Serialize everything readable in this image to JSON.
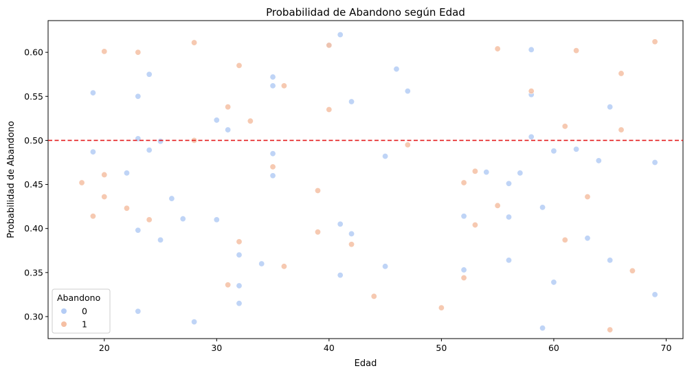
{
  "chart_data": {
    "type": "scatter",
    "title": "Probabilidad de Abandono según Edad",
    "xlabel": "Edad",
    "ylabel": "Probabilidad de Abandono",
    "xlim": [
      15,
      71.5
    ],
    "ylim": [
      0.275,
      0.636
    ],
    "xticks": [
      20,
      30,
      40,
      50,
      60,
      70
    ],
    "yticks": [
      0.3,
      0.35,
      0.4,
      0.45,
      0.5,
      0.55,
      0.6
    ],
    "xtick_labels": [
      "20",
      "30",
      "40",
      "50",
      "60",
      "70"
    ],
    "ytick_labels": [
      "0.30",
      "0.35",
      "0.40",
      "0.45",
      "0.50",
      "0.55",
      "0.60"
    ],
    "grid": false,
    "reference_line": {
      "y": 0.5,
      "color": "#e41a1c",
      "style": "dashed"
    },
    "legend": {
      "title": "Abandono",
      "position": "lower-left"
    },
    "colors": {
      "0": "#b4ccf5",
      "1": "#f5bfa3"
    },
    "series": [
      {
        "name": "0",
        "x": [
          19,
          19,
          23,
          23,
          23,
          23,
          24,
          24,
          25,
          25,
          22,
          26,
          27,
          28,
          30,
          30,
          31,
          32,
          32,
          32,
          34,
          35,
          35,
          35,
          35,
          40,
          41,
          41,
          41,
          42,
          42,
          45,
          45,
          46,
          47,
          52,
          52,
          54,
          56,
          56,
          56,
          57,
          58,
          58,
          58,
          59,
          59,
          60,
          60,
          62,
          63,
          64,
          65,
          65,
          69,
          69
        ],
        "y": [
          0.554,
          0.487,
          0.55,
          0.502,
          0.398,
          0.306,
          0.575,
          0.489,
          0.499,
          0.387,
          0.463,
          0.434,
          0.411,
          0.294,
          0.523,
          0.41,
          0.512,
          0.37,
          0.335,
          0.315,
          0.36,
          0.572,
          0.562,
          0.485,
          0.46,
          0.608,
          0.62,
          0.405,
          0.347,
          0.544,
          0.394,
          0.482,
          0.357,
          0.581,
          0.556,
          0.414,
          0.353,
          0.464,
          0.451,
          0.413,
          0.364,
          0.463,
          0.603,
          0.552,
          0.504,
          0.424,
          0.287,
          0.488,
          0.339,
          0.49,
          0.389,
          0.477,
          0.538,
          0.364,
          0.475,
          0.325
        ]
      },
      {
        "name": "1",
        "x": [
          18,
          19,
          20,
          20,
          20,
          22,
          23,
          24,
          28,
          28,
          31,
          31,
          32,
          32,
          33,
          35,
          36,
          36,
          39,
          39,
          40,
          40,
          42,
          44,
          47,
          50,
          52,
          52,
          53,
          53,
          55,
          55,
          58,
          61,
          61,
          62,
          63,
          65,
          66,
          66,
          67,
          69
        ],
        "y": [
          0.452,
          0.414,
          0.601,
          0.461,
          0.436,
          0.423,
          0.6,
          0.41,
          0.611,
          0.5,
          0.538,
          0.336,
          0.585,
          0.385,
          0.522,
          0.47,
          0.562,
          0.357,
          0.443,
          0.396,
          0.608,
          0.535,
          0.382,
          0.323,
          0.495,
          0.31,
          0.452,
          0.344,
          0.465,
          0.404,
          0.604,
          0.426,
          0.556,
          0.516,
          0.387,
          0.602,
          0.436,
          0.285,
          0.576,
          0.512,
          0.352,
          0.612
        ]
      }
    ]
  }
}
